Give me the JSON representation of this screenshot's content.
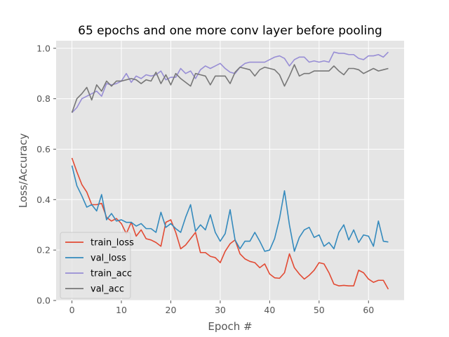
{
  "chart_data": {
    "type": "line",
    "title": "65 epochs and one more conv layer before pooling",
    "xlabel": "Epoch #",
    "ylabel": "Loss/Accuracy",
    "xlim": [
      -3.2,
      67.2
    ],
    "ylim": [
      0.0,
      1.03
    ],
    "xticks": [
      0,
      10,
      20,
      30,
      40,
      50,
      60
    ],
    "yticks": [
      0.0,
      0.2,
      0.4,
      0.6,
      0.8,
      1.0
    ],
    "xtick_labels": [
      "0",
      "10",
      "20",
      "30",
      "40",
      "50",
      "60"
    ],
    "ytick_labels": [
      "0.0",
      "0.2",
      "0.4",
      "0.6",
      "0.8",
      "1.0"
    ],
    "grid": true,
    "background": "#e5e5e5",
    "legend_position": "lower-left",
    "series": [
      {
        "name": "train_loss",
        "color": "#e24a33",
        "values": [
          0.565,
          0.51,
          0.46,
          0.43,
          0.38,
          0.38,
          0.385,
          0.33,
          0.315,
          0.325,
          0.305,
          0.265,
          0.31,
          0.255,
          0.28,
          0.245,
          0.24,
          0.23,
          0.215,
          0.31,
          0.32,
          0.27,
          0.205,
          0.22,
          0.245,
          0.27,
          0.19,
          0.19,
          0.175,
          0.17,
          0.15,
          0.195,
          0.225,
          0.24,
          0.185,
          0.165,
          0.155,
          0.15,
          0.13,
          0.145,
          0.105,
          0.09,
          0.088,
          0.11,
          0.185,
          0.13,
          0.105,
          0.085,
          0.1,
          0.12,
          0.15,
          0.145,
          0.11,
          0.065,
          0.058,
          0.06,
          0.058,
          0.058,
          0.12,
          0.11,
          0.085,
          0.072,
          0.08,
          0.08,
          0.045
        ]
      },
      {
        "name": "val_loss",
        "color": "#348abd",
        "values": [
          0.535,
          0.455,
          0.415,
          0.37,
          0.38,
          0.355,
          0.42,
          0.32,
          0.345,
          0.315,
          0.32,
          0.31,
          0.31,
          0.295,
          0.305,
          0.285,
          0.285,
          0.27,
          0.35,
          0.29,
          0.305,
          0.285,
          0.27,
          0.33,
          0.38,
          0.275,
          0.3,
          0.28,
          0.34,
          0.27,
          0.235,
          0.265,
          0.36,
          0.24,
          0.205,
          0.235,
          0.235,
          0.27,
          0.235,
          0.195,
          0.2,
          0.245,
          0.325,
          0.435,
          0.3,
          0.195,
          0.25,
          0.28,
          0.29,
          0.25,
          0.26,
          0.215,
          0.23,
          0.205,
          0.27,
          0.3,
          0.24,
          0.28,
          0.23,
          0.26,
          0.255,
          0.215,
          0.315,
          0.235,
          0.232
        ]
      },
      {
        "name": "train_acc",
        "color": "#988ed5",
        "values": [
          0.745,
          0.765,
          0.8,
          0.81,
          0.82,
          0.83,
          0.81,
          0.86,
          0.855,
          0.86,
          0.87,
          0.9,
          0.865,
          0.89,
          0.88,
          0.895,
          0.89,
          0.895,
          0.91,
          0.875,
          0.885,
          0.885,
          0.92,
          0.9,
          0.91,
          0.88,
          0.915,
          0.93,
          0.92,
          0.93,
          0.94,
          0.92,
          0.905,
          0.9,
          0.925,
          0.94,
          0.945,
          0.945,
          0.945,
          0.945,
          0.955,
          0.965,
          0.97,
          0.96,
          0.93,
          0.955,
          0.965,
          0.965,
          0.945,
          0.95,
          0.945,
          0.95,
          0.945,
          0.985,
          0.98,
          0.98,
          0.975,
          0.975,
          0.96,
          0.955,
          0.97,
          0.97,
          0.975,
          0.965,
          0.985
        ]
      },
      {
        "name": "val_acc",
        "color": "#777777",
        "values": [
          0.745,
          0.8,
          0.82,
          0.845,
          0.795,
          0.855,
          0.83,
          0.87,
          0.85,
          0.87,
          0.87,
          0.875,
          0.88,
          0.875,
          0.86,
          0.875,
          0.87,
          0.905,
          0.86,
          0.895,
          0.855,
          0.9,
          0.88,
          0.865,
          0.85,
          0.9,
          0.895,
          0.89,
          0.855,
          0.89,
          0.89,
          0.89,
          0.86,
          0.905,
          0.925,
          0.92,
          0.915,
          0.89,
          0.915,
          0.925,
          0.92,
          0.915,
          0.895,
          0.85,
          0.89,
          0.935,
          0.89,
          0.9,
          0.9,
          0.91,
          0.91,
          0.91,
          0.91,
          0.93,
          0.91,
          0.895,
          0.92,
          0.92,
          0.915,
          0.9,
          0.91,
          0.92,
          0.91,
          0.915,
          0.92
        ]
      }
    ]
  }
}
